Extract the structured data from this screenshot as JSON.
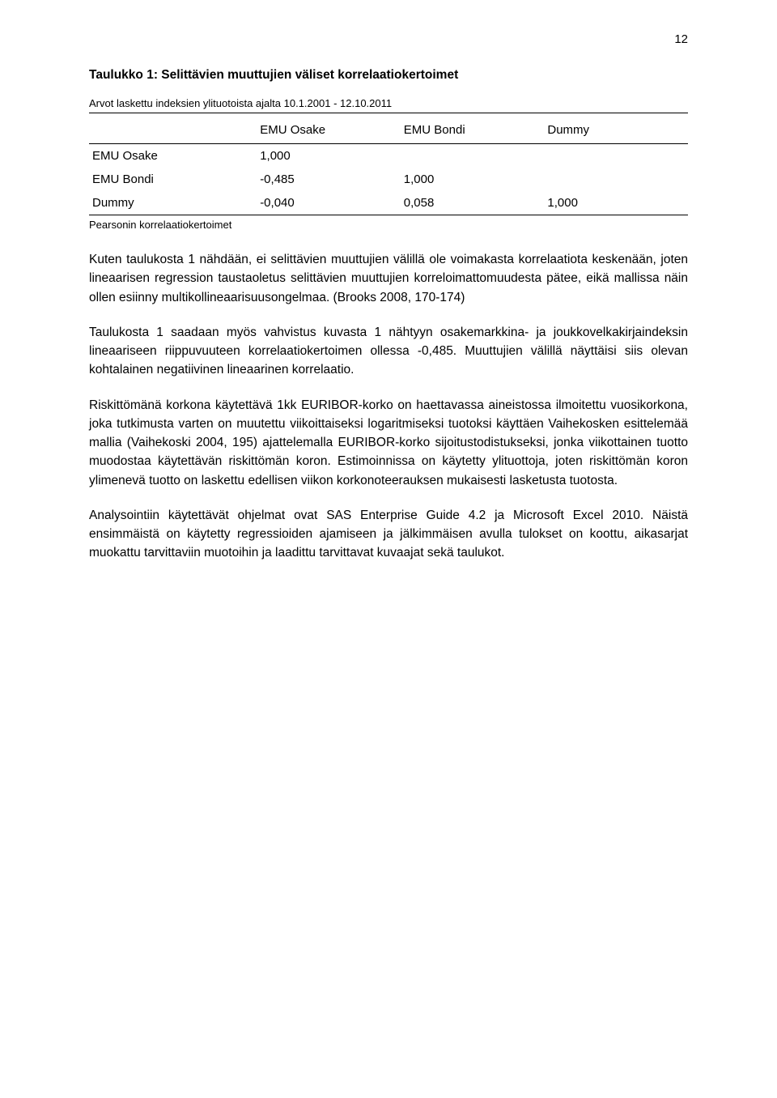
{
  "page_number": "12",
  "table": {
    "title": "Taulukko 1: Selittävien muuttujien väliset korrelaatiokertoimet",
    "subtitle": "Arvot laskettu indeksien ylituotoista ajalta 10.1.2001 - 12.10.2011",
    "columns": [
      "",
      "EMU Osake",
      "EMU Bondi",
      "Dummy"
    ],
    "rowlabels": [
      "EMU Osake",
      "EMU Bondi",
      "Dummy"
    ],
    "cells": [
      [
        "1,000",
        "",
        ""
      ],
      [
        "-0,485",
        "1,000",
        ""
      ],
      [
        "-0,040",
        "0,058",
        "1,000"
      ]
    ],
    "footnote": "Pearsonin korrelaatiokertoimet"
  },
  "paragraphs": {
    "p1": "Kuten taulukosta 1 nähdään, ei selittävien muuttujien välillä ole voimakasta korrelaatiota keskenään, joten lineaarisen regression taustaoletus selittävien muuttujien korreloimattomuudesta pätee, eikä mallissa näin ollen esiinny multikollineaarisuusongelmaa. (Brooks 2008, 170-174)",
    "p2": "Taulukosta 1 saadaan myös vahvistus kuvasta 1 nähtyyn osakemarkkina- ja joukkovelkakirjaindeksin lineaariseen riippuvuuteen korrelaatiokertoimen ollessa -0,485. Muuttujien välillä näyttäisi siis olevan kohtalainen negatiivinen lineaarinen korrelaatio.",
    "p3": "Riskittömänä korkona käytettävä 1kk EURIBOR-korko on haettavassa aineistossa ilmoitettu vuosikorkona, joka tutkimusta varten on muutettu viikoittaiseksi logaritmiseksi tuotoksi käyttäen Vaihekosken esittelemää mallia (Vaihekoski 2004, 195) ajattelemalla EURIBOR-korko sijoitustodistukseksi, jonka viikottainen tuotto muodostaa käytettävän riskittömän koron. Estimoinnissa on käytetty ylituottoja, joten riskittömän koron ylimenevä tuotto on laskettu edellisen viikon korkonoteerauksen mukaisesti lasketusta tuotosta.",
    "p4": "Analysointiin käytettävät ohjelmat ovat SAS Enterprise Guide 4.2 ja Microsoft Excel 2010. Näistä ensimmäistä on käytetty regressioiden ajamiseen ja jälkimmäisen avulla tulokset on koottu, aikasarjat muokattu tarvittaviin muotoihin ja laadittu tarvittavat kuvaajat sekä taulukot."
  },
  "style": {
    "font_family": "Arial",
    "body_font_size_pt": 12,
    "small_font_size_pt": 10,
    "text_color": "#000000",
    "background_color": "#ffffff",
    "border_color": "#000000",
    "line_height": 1.5,
    "text_align": "justify"
  }
}
